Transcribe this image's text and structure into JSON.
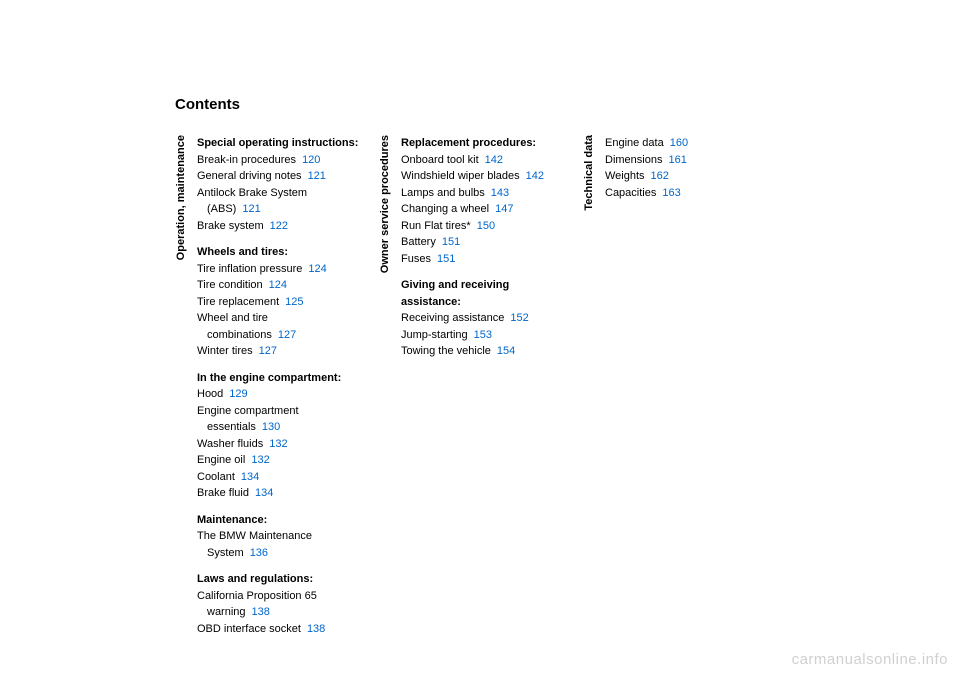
{
  "title": "Contents",
  "watermark": "carmanualsonline.info",
  "columns": [
    {
      "label": "Operation, maintenance",
      "groups": [
        {
          "heading": "Special operating instructions:",
          "entries": [
            {
              "text": "Break-in procedures",
              "page": "120"
            },
            {
              "text": "General driving notes",
              "page": "121"
            },
            {
              "text": "Antilock Brake System",
              "cont": "(ABS)",
              "page": "121"
            },
            {
              "text": "Brake system",
              "page": "122"
            }
          ]
        },
        {
          "heading": "Wheels and tires:",
          "entries": [
            {
              "text": "Tire inflation pressure",
              "page": "124"
            },
            {
              "text": "Tire condition",
              "page": "124"
            },
            {
              "text": "Tire replacement",
              "page": "125"
            },
            {
              "text": "Wheel and tire",
              "cont": "combinations",
              "page": "127"
            },
            {
              "text": "Winter tires",
              "page": "127"
            }
          ]
        },
        {
          "heading": "In the engine compartment:",
          "entries": [
            {
              "text": "Hood",
              "page": "129"
            },
            {
              "text": "Engine compartment",
              "cont": "essentials",
              "page": "130"
            },
            {
              "text": "Washer fluids",
              "page": "132"
            },
            {
              "text": "Engine oil",
              "page": "132"
            },
            {
              "text": "Coolant",
              "page": "134"
            },
            {
              "text": "Brake fluid",
              "page": "134"
            }
          ]
        },
        {
          "heading": "Maintenance:",
          "entries": [
            {
              "text": "The BMW Maintenance",
              "cont": "System",
              "page": "136"
            }
          ]
        },
        {
          "heading": "Laws and regulations:",
          "entries": [
            {
              "text": "California Proposition 65",
              "cont": "warning",
              "page": "138"
            },
            {
              "text": "OBD interface socket",
              "page": "138"
            }
          ]
        }
      ]
    },
    {
      "label": "Owner service procedures",
      "groups": [
        {
          "heading": "Replacement procedures:",
          "entries": [
            {
              "text": "Onboard tool kit",
              "page": "142"
            },
            {
              "text": "Windshield wiper blades",
              "page": "142"
            },
            {
              "text": "Lamps and bulbs",
              "page": "143"
            },
            {
              "text": "Changing a wheel",
              "page": "147"
            },
            {
              "text": "Run Flat tires*",
              "page": "150"
            },
            {
              "text": "Battery",
              "page": "151"
            },
            {
              "text": "Fuses",
              "page": "151"
            }
          ]
        },
        {
          "heading": "Giving and receiving assistance:",
          "entries": [
            {
              "text": "Receiving assistance",
              "page": "152"
            },
            {
              "text": "Jump-starting",
              "page": "153"
            },
            {
              "text": "Towing the vehicle",
              "page": "154"
            }
          ]
        }
      ]
    },
    {
      "label": "Technical data",
      "groups": [
        {
          "heading": "",
          "entries": [
            {
              "text": "Engine data",
              "page": "160"
            },
            {
              "text": "Dimensions",
              "page": "161"
            },
            {
              "text": "Weights",
              "page": "162"
            },
            {
              "text": "Capacities",
              "page": "163"
            }
          ]
        }
      ]
    }
  ]
}
